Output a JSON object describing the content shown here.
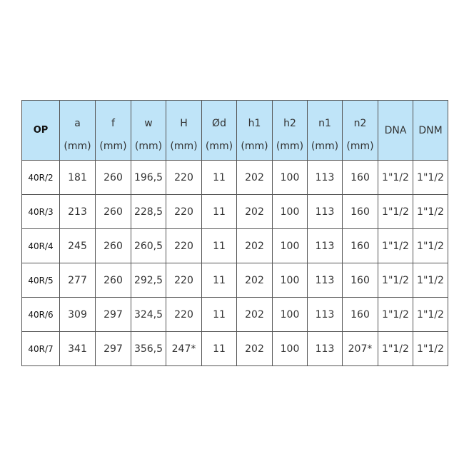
{
  "table": {
    "header_color": "#bfe4f8",
    "columns": [
      {
        "label": "OP",
        "unit": ""
      },
      {
        "label": "a",
        "unit": "(mm)"
      },
      {
        "label": "f",
        "unit": "(mm)"
      },
      {
        "label": "w",
        "unit": "(mm)"
      },
      {
        "label": "H",
        "unit": "(mm)"
      },
      {
        "label": "Ød",
        "unit": "(mm)"
      },
      {
        "label": "h1",
        "unit": "(mm)"
      },
      {
        "label": "h2",
        "unit": "(mm)"
      },
      {
        "label": "n1",
        "unit": "(mm)"
      },
      {
        "label": "n2",
        "unit": "(mm)"
      },
      {
        "label": "DNA",
        "unit": ""
      },
      {
        "label": "DNM",
        "unit": ""
      }
    ],
    "rows": [
      [
        "40R/2",
        "181",
        "260",
        "196,5",
        "220",
        "11",
        "202",
        "100",
        "113",
        "160",
        "1\"1/2",
        "1\"1/2"
      ],
      [
        "40R/3",
        "213",
        "260",
        "228,5",
        "220",
        "11",
        "202",
        "100",
        "113",
        "160",
        "1\"1/2",
        "1\"1/2"
      ],
      [
        "40R/4",
        "245",
        "260",
        "260,5",
        "220",
        "11",
        "202",
        "100",
        "113",
        "160",
        "1\"1/2",
        "1\"1/2"
      ],
      [
        "40R/5",
        "277",
        "260",
        "292,5",
        "220",
        "11",
        "202",
        "100",
        "113",
        "160",
        "1\"1/2",
        "1\"1/2"
      ],
      [
        "40R/6",
        "309",
        "297",
        "324,5",
        "220",
        "11",
        "202",
        "100",
        "113",
        "160",
        "1\"1/2",
        "1\"1/2"
      ],
      [
        "40R/7",
        "341",
        "297",
        "356,5",
        "247*",
        "11",
        "202",
        "100",
        "113",
        "207*",
        "1\"1/2",
        "1\"1/2"
      ]
    ]
  }
}
